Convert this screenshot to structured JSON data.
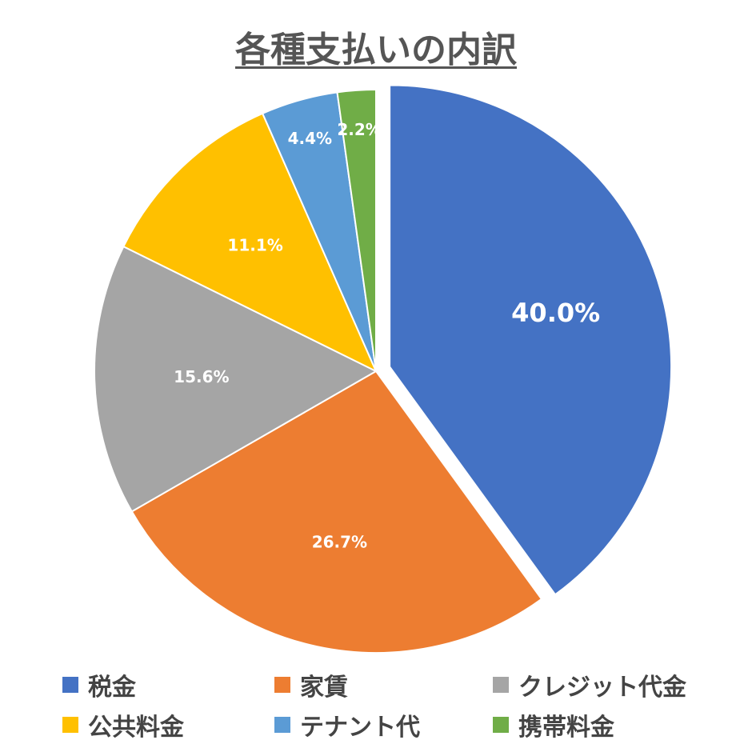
{
  "chart_data": {
    "type": "pie",
    "title": "各種支払いの内訳",
    "categories": [
      "税金",
      "家賃",
      "クレジット代金",
      "公共料金",
      "テナント代",
      "携帯料金"
    ],
    "values": [
      40.0,
      26.7,
      15.6,
      11.1,
      4.4,
      2.2
    ],
    "labels": [
      "40.0%",
      "26.7%",
      "15.6%",
      "11.1%",
      "4.4%",
      "2.2%"
    ],
    "colors": [
      "#4472C4",
      "#ED7D31",
      "#A5A5A5",
      "#FFC000",
      "#5B9BD5",
      "#70AD47"
    ],
    "exploded": "税金",
    "legend_position": "bottom"
  }
}
